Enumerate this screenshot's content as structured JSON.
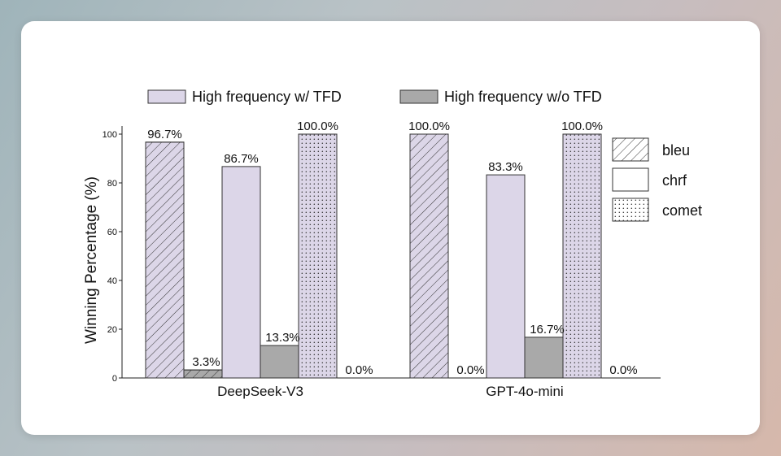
{
  "chart_data": {
    "type": "bar",
    "ylabel": "Winning Percentage (%)",
    "ylim": [
      0,
      100
    ],
    "yticks": [
      0,
      20,
      40,
      60,
      80,
      100
    ],
    "categories": [
      "DeepSeek-V3",
      "GPT-4o-mini"
    ],
    "metrics": [
      "bleu",
      "chrf",
      "comet"
    ],
    "series": [
      {
        "name": "High frequency w/ TFD",
        "color": "#dcd6e8",
        "values": {
          "DeepSeek-V3": {
            "bleu": 96.7,
            "chrf": 86.7,
            "comet": 100.0
          },
          "GPT-4o-mini": {
            "bleu": 100.0,
            "chrf": 83.3,
            "comet": 100.0
          }
        }
      },
      {
        "name": "High frequency w/o TFD",
        "color": "#a9a9a9",
        "values": {
          "DeepSeek-V3": {
            "bleu": 3.3,
            "chrf": 13.3,
            "comet": 0.0
          },
          "GPT-4o-mini": {
            "bleu": 0.0,
            "chrf": 16.7,
            "comet": 0.0
          }
        }
      }
    ],
    "data_labels": {
      "DeepSeek-V3": {
        "bleu": [
          "96.7%",
          "3.3%"
        ],
        "chrf": [
          "86.7%",
          "13.3%"
        ],
        "comet": [
          "100.0%",
          "0.0%"
        ]
      },
      "GPT-4o-mini": {
        "bleu": [
          "100.0%",
          "0.0%"
        ],
        "chrf": [
          "83.3%",
          "16.7%"
        ],
        "comet": [
          "100.0%",
          "0.0%"
        ]
      }
    },
    "metric_legend": [
      {
        "label": "bleu",
        "pattern": "hatch"
      },
      {
        "label": "chrf",
        "pattern": "none"
      },
      {
        "label": "comet",
        "pattern": "dots"
      }
    ],
    "series_legend_placement": "top",
    "metric_legend_placement": "right",
    "grid": false
  }
}
